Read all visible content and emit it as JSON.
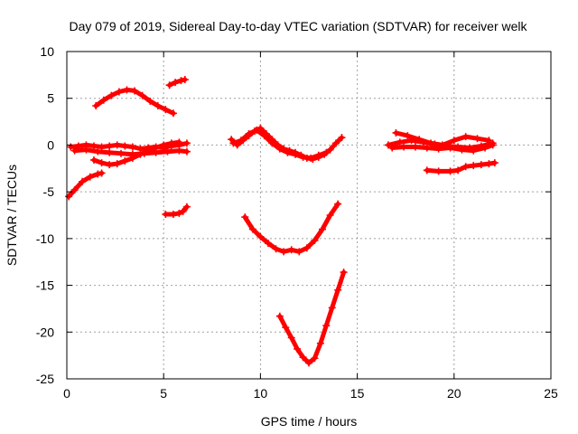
{
  "chart_data": {
    "type": "scatter",
    "title": "Day 079 of 2019, Sidereal Day-to-day VTEC variation (SDTVAR) for receiver welk",
    "xlabel": "GPS time / hours",
    "ylabel": "SDTVAR / TECUs",
    "xlim": [
      0,
      25
    ],
    "ylim": [
      -25,
      10
    ],
    "xticks": [
      0,
      5,
      10,
      15,
      20,
      25
    ],
    "yticks": [
      -25,
      -20,
      -15,
      -10,
      -5,
      0,
      5,
      10
    ],
    "grid": true,
    "marker": "plus",
    "color": "#ff0000",
    "series": [
      {
        "x": [
          0.1,
          0.4,
          0.8,
          1.2,
          1.6,
          1.8
        ],
        "y": [
          -5.5,
          -4.8,
          -3.9,
          -3.4,
          -3.1,
          -3.0
        ]
      },
      {
        "x": [
          0.2,
          0.6,
          1.0,
          1.4,
          1.8,
          2.2,
          2.6,
          3.0,
          3.4,
          3.8,
          4.2,
          4.6,
          5.0,
          5.4,
          5.8,
          6.2
        ],
        "y": [
          -0.2,
          -0.1,
          0.0,
          -0.1,
          -0.2,
          -0.1,
          0.0,
          -0.1,
          -0.2,
          -0.4,
          -0.3,
          -0.2,
          -0.3,
          -0.1,
          0.0,
          0.2
        ]
      },
      {
        "x": [
          0.4,
          1.0,
          1.6,
          2.2,
          2.8,
          3.4,
          4.0,
          4.6,
          5.2,
          5.8,
          6.2
        ],
        "y": [
          -0.6,
          -0.5,
          -0.7,
          -0.8,
          -0.9,
          -1.0,
          -0.9,
          -0.8,
          -0.7,
          -0.6,
          -0.7
        ]
      },
      {
        "x": [
          1.4,
          1.8,
          2.2,
          2.6,
          3.0,
          3.4,
          3.8,
          4.2,
          4.6,
          5.0,
          5.4,
          5.8
        ],
        "y": [
          -1.6,
          -1.9,
          -2.1,
          -2.0,
          -1.7,
          -1.4,
          -1.0,
          -0.6,
          -0.3,
          0.0,
          0.2,
          0.3
        ]
      },
      {
        "x": [
          1.5,
          1.9,
          2.3,
          2.7,
          3.1,
          3.5,
          3.9,
          4.3,
          4.7,
          5.1,
          5.5
        ],
        "y": [
          4.2,
          4.8,
          5.3,
          5.7,
          5.9,
          5.8,
          5.3,
          4.7,
          4.2,
          3.8,
          3.4
        ]
      },
      {
        "x": [
          5.3,
          5.6,
          5.9,
          6.1
        ],
        "y": [
          6.4,
          6.7,
          6.9,
          7.0
        ]
      },
      {
        "x": [
          5.1,
          5.5,
          5.8,
          6.0,
          6.2
        ],
        "y": [
          -7.4,
          -7.4,
          -7.3,
          -7.1,
          -6.6
        ]
      },
      {
        "x": [
          8.5,
          8.8,
          9.1,
          9.4,
          9.7,
          10.0,
          10.3,
          10.6,
          10.9,
          11.2,
          11.5,
          11.8,
          12.1,
          12.4,
          12.7,
          13.0,
          13.3,
          13.6,
          13.9,
          14.2
        ],
        "y": [
          0.6,
          0.0,
          0.5,
          1.0,
          1.5,
          1.8,
          1.2,
          0.6,
          0.0,
          -0.4,
          -0.6,
          -0.8,
          -1.1,
          -1.4,
          -1.5,
          -1.3,
          -1.0,
          -0.5,
          0.2,
          0.8
        ]
      },
      {
        "x": [
          8.6,
          9.0,
          9.4,
          9.8,
          10.2,
          10.6,
          11.0,
          11.4,
          11.8,
          12.2,
          12.6,
          13.0,
          13.4
        ],
        "y": [
          0.2,
          0.5,
          1.2,
          1.6,
          1.0,
          0.2,
          -0.4,
          -0.8,
          -1.0,
          -1.3,
          -1.4,
          -1.1,
          -0.8
        ]
      },
      {
        "x": [
          9.2,
          9.6,
          10.0,
          10.4,
          10.8,
          11.2,
          11.6,
          12.0,
          12.4,
          12.8,
          13.2,
          13.6,
          14.0
        ],
        "y": [
          -7.7,
          -9.0,
          -9.8,
          -10.5,
          -11.1,
          -11.4,
          -11.2,
          -11.4,
          -11.0,
          -10.2,
          -9.0,
          -7.5,
          -6.3
        ]
      },
      {
        "x": [
          11.0,
          11.3,
          11.6,
          11.9,
          12.2,
          12.5,
          12.8,
          13.1,
          13.4,
          13.7,
          14.0,
          14.3
        ],
        "y": [
          -18.3,
          -19.5,
          -20.6,
          -21.8,
          -22.7,
          -23.3,
          -22.8,
          -21.2,
          -19.3,
          -17.4,
          -15.5,
          -13.6
        ]
      },
      {
        "x": [
          16.6,
          17.2,
          17.8,
          18.4,
          19.0,
          19.6,
          20.2,
          20.8,
          21.4,
          22.0
        ],
        "y": [
          0.0,
          0.3,
          0.5,
          0.3,
          0.1,
          -0.1,
          -0.2,
          -0.3,
          -0.1,
          0.2
        ]
      },
      {
        "x": [
          16.8,
          17.4,
          18.0,
          18.6,
          19.2,
          19.8,
          20.4,
          21.0,
          21.6,
          22.0
        ],
        "y": [
          -0.3,
          -0.2,
          -0.2,
          -0.3,
          -0.4,
          -0.3,
          -0.5,
          -0.6,
          -0.3,
          0.0
        ]
      },
      {
        "x": [
          17.0,
          17.6,
          18.2,
          18.8,
          19.4,
          20.0,
          20.6,
          21.2,
          21.8
        ],
        "y": [
          1.3,
          1.0,
          0.6,
          0.2,
          0.0,
          0.5,
          0.9,
          0.7,
          0.5
        ]
      },
      {
        "x": [
          18.6,
          19.2,
          19.8,
          20.2,
          20.6,
          21.0,
          21.4,
          21.8,
          22.1
        ],
        "y": [
          -2.7,
          -2.8,
          -2.8,
          -2.7,
          -2.3,
          -2.2,
          -2.1,
          -2.0,
          -1.9
        ]
      }
    ]
  }
}
